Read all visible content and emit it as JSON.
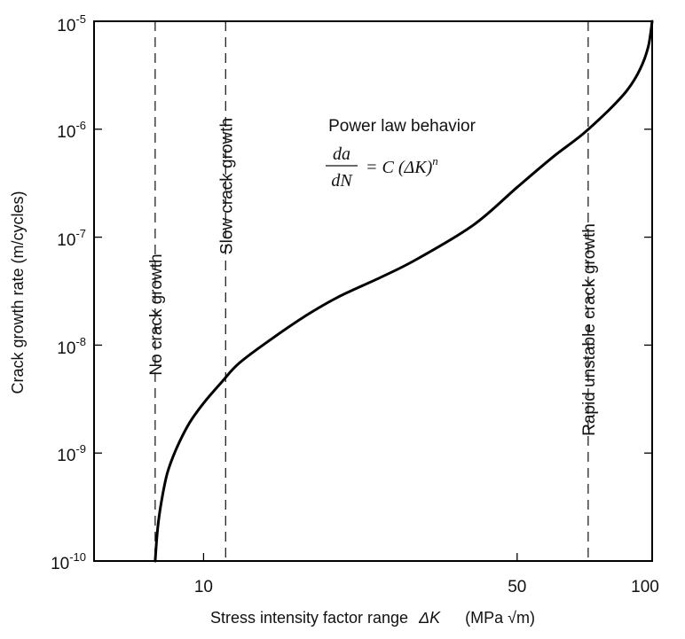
{
  "chart_data": {
    "type": "line",
    "title": "",
    "xlabel": "Stress intensity factor range  ΔK    (MPa √m)",
    "xlabel_parts": {
      "text": "Stress intensity factor range",
      "symbol": "ΔK",
      "unit_open": "(MPa ",
      "unit_root": "√m",
      "unit_close": ")"
    },
    "ylabel": "Crack growth rate   (m/cycles)",
    "x_scale": "log",
    "y_scale": "log",
    "xlim": [
      5.7,
      100
    ],
    "ylim": [
      1e-10,
      1e-05
    ],
    "x_ticks": [
      {
        "value": 10,
        "label": "10"
      },
      {
        "value": 50,
        "label": "50"
      },
      {
        "value": 100,
        "label": "100"
      }
    ],
    "y_ticks": [
      {
        "value": 1e-10,
        "base": "10",
        "exp": "-10"
      },
      {
        "value": 1e-09,
        "base": "10",
        "exp": "-9"
      },
      {
        "value": 1e-08,
        "base": "10",
        "exp": "-8"
      },
      {
        "value": 1e-07,
        "base": "10",
        "exp": "-7"
      },
      {
        "value": 1e-06,
        "base": "10",
        "exp": "-6"
      },
      {
        "value": 1e-05,
        "base": "10",
        "exp": "-5"
      }
    ],
    "grid": false,
    "legend": "none",
    "series": [
      {
        "name": "",
        "x": [
          7.8,
          7.9,
          8.05,
          8.3,
          8.7,
          9.3,
          10.0,
          11.0,
          12.0,
          14.0,
          17.0,
          20.0,
          25.0,
          30.0,
          40.0,
          50.0,
          60.0,
          70.0,
          80.0,
          88.0,
          94.0,
          98.0,
          100.0
        ],
        "y": [
          1e-10,
          2e-10,
          3.5e-10,
          6.5e-10,
          1.1e-09,
          1.9e-09,
          2.9e-09,
          4.6e-09,
          6.8e-09,
          1.1e-08,
          1.9e-08,
          2.8e-08,
          4.3e-08,
          6.3e-08,
          1.3e-07,
          2.9e-07,
          5.5e-07,
          9e-07,
          1.5e-06,
          2.3e-06,
          3.6e-06,
          5.8e-06,
          1e-05
        ]
      }
    ],
    "boundaries": [
      {
        "x": 7.8,
        "label": "No crack growth"
      },
      {
        "x": 11.2,
        "label": "Slow crack growth"
      },
      {
        "x": 72.0,
        "label": "Rapid unstable crack growth"
      }
    ],
    "annotation": {
      "text": "Power law behavior",
      "formula_num": "da",
      "formula_den": "dN",
      "formula_eq": "= C (ΔK)",
      "formula_exp": "n"
    }
  }
}
